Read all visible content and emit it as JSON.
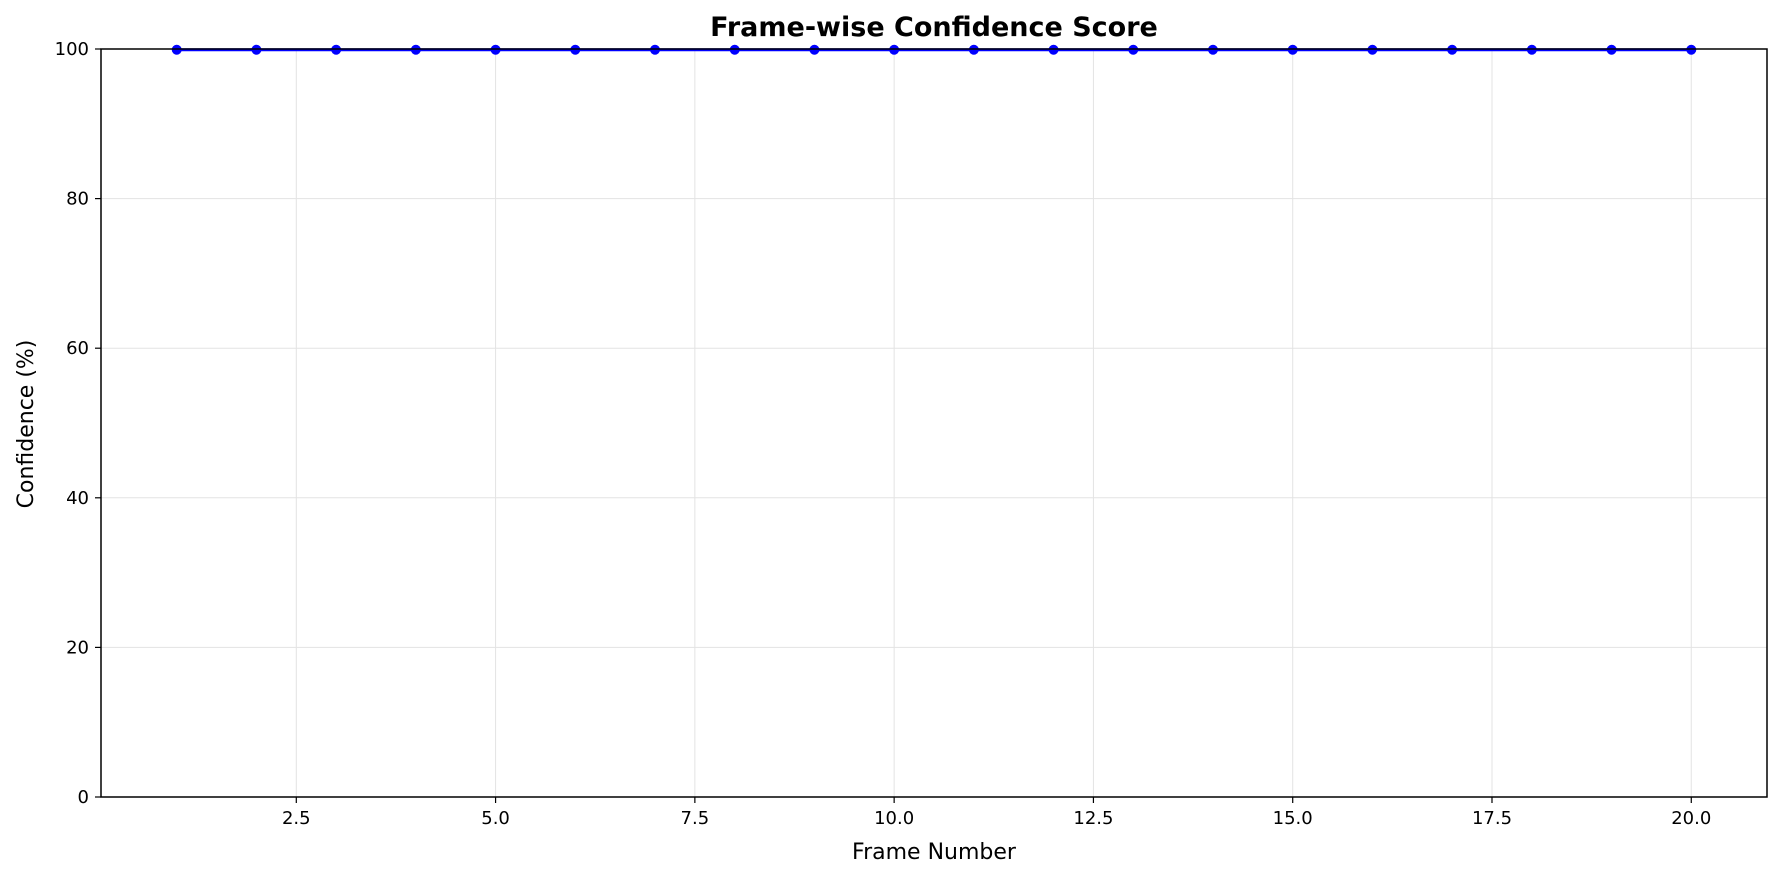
{
  "chart_data": {
    "type": "line",
    "title": "Frame-wise Confidence Score",
    "xlabel": "Frame Number",
    "ylabel": "Confidence (%)",
    "xlim": [
      0.05,
      20.95
    ],
    "ylim": [
      0,
      100
    ],
    "x_ticks": [
      2.5,
      5.0,
      7.5,
      10.0,
      12.5,
      15.0,
      17.5,
      20.0
    ],
    "x_tick_labels": [
      "2.5",
      "5.0",
      "7.5",
      "10.0",
      "12.5",
      "15.0",
      "17.5",
      "20.0"
    ],
    "y_ticks": [
      0,
      20,
      40,
      60,
      80,
      100
    ],
    "y_tick_labels": [
      "0",
      "20",
      "40",
      "60",
      "80",
      "100"
    ],
    "grid": true,
    "series": [
      {
        "color": "#0000ff",
        "marker": "circle",
        "x": [
          1,
          2,
          3,
          4,
          5,
          6,
          7,
          8,
          9,
          10,
          11,
          12,
          13,
          14,
          15,
          16,
          17,
          18,
          19,
          20
        ],
        "y": [
          99.9,
          99.9,
          99.9,
          99.9,
          99.9,
          99.9,
          99.9,
          99.9,
          99.9,
          99.9,
          99.9,
          99.9,
          99.9,
          99.9,
          99.9,
          99.9,
          99.9,
          99.9,
          99.9,
          99.9
        ]
      }
    ]
  }
}
